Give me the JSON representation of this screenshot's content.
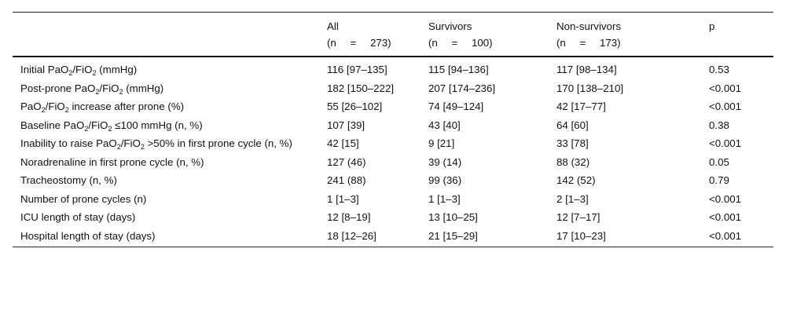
{
  "table": {
    "columns": [
      {
        "title": "",
        "n": ""
      },
      {
        "title": "All",
        "n": "(n = 273)"
      },
      {
        "title": "Survivors",
        "n": "(n = 100)"
      },
      {
        "title": "Non-survivors",
        "n": "(n = 173)"
      },
      {
        "title": "p",
        "n": ""
      }
    ],
    "rows": [
      {
        "label": [
          [
            "Initial PaO"
          ],
          [
            "2",
            "sub"
          ],
          [
            "/FiO"
          ],
          [
            "2",
            "sub"
          ],
          [
            " (mmHg)"
          ]
        ],
        "all": "116 [97–135]",
        "survivors": "115 [94–136]",
        "non_survivors": "117 [98–134]",
        "p": "0.53"
      },
      {
        "label": [
          [
            "Post-prone PaO"
          ],
          [
            "2",
            "sub"
          ],
          [
            "/FiO"
          ],
          [
            "2",
            "sub"
          ],
          [
            " (mmHg)"
          ]
        ],
        "all": "182 [150–222]",
        "survivors": "207 [174–236]",
        "non_survivors": "170 [138–210]",
        "p": "<0.001"
      },
      {
        "label": [
          [
            "PaO"
          ],
          [
            "2",
            "sub"
          ],
          [
            "/FiO"
          ],
          [
            "2",
            "sub"
          ],
          [
            " increase after prone (%)"
          ]
        ],
        "all": "55 [26–102]",
        "survivors": "74 [49–124]",
        "non_survivors": "42 [17–77]",
        "p": "<0.001"
      },
      {
        "label": [
          [
            "Baseline PaO"
          ],
          [
            "2",
            "sub"
          ],
          [
            "/FiO"
          ],
          [
            "2",
            "sub"
          ],
          [
            " ≤100  mmHg (n, %)"
          ]
        ],
        "all": "107 [39]",
        "survivors": "43 [40]",
        "non_survivors": "64 [60]",
        "p": "0.38"
      },
      {
        "label": [
          [
            "Inability to raise PaO"
          ],
          [
            "2",
            "sub"
          ],
          [
            "/FiO"
          ],
          [
            "2",
            "sub"
          ],
          [
            " >50% in first prone cycle (n, %)"
          ]
        ],
        "all": "42 [15]",
        "survivors": "9 [21]",
        "non_survivors": "33 [78]",
        "p": "<0.001"
      },
      {
        "label": [
          [
            "Noradrenaline in first prone cycle (n, %)"
          ]
        ],
        "all": "127 (46)",
        "survivors": "39 (14)",
        "non_survivors": "88 (32)",
        "p": "0.05"
      },
      {
        "label": [
          [
            "Tracheostomy (n, %)"
          ]
        ],
        "all": "241 (88)",
        "survivors": "99 (36)",
        "non_survivors": "142 (52)",
        "p": "0.79"
      },
      {
        "label": [
          [
            "Number of prone cycles (n)"
          ]
        ],
        "all": "1 [1–3]",
        "survivors": "1 [1–3]",
        "non_survivors": "2 [1–3]",
        "p": "<0.001"
      },
      {
        "label": [
          [
            "ICU length of stay (days)"
          ]
        ],
        "all": "12 [8–19]",
        "survivors": "13 [10–25]",
        "non_survivors": "12 [7–17]",
        "p": "<0.001"
      },
      {
        "label": [
          [
            "Hospital length of stay (days)"
          ]
        ],
        "all": "18 [12–26]",
        "survivors": "21 [15–29]",
        "non_survivors": "17 [10–23]",
        "p": "<0.001"
      }
    ]
  }
}
